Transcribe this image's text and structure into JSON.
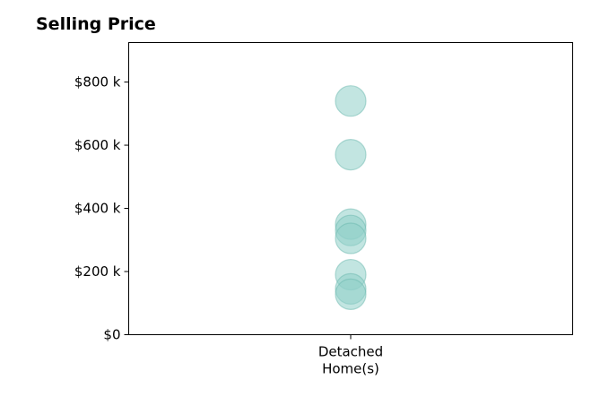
{
  "chart_data": {
    "type": "scatter",
    "title": "Selling Price",
    "xlabel": "",
    "ylabel": "",
    "categories": [
      "Detached Home(s)"
    ],
    "category_lines": [
      [
        "Detached",
        "Home(s)"
      ]
    ],
    "ylim": [
      0,
      925
    ],
    "y_ticks": [
      0,
      200,
      400,
      600,
      800
    ],
    "y_tick_labels": [
      "$0",
      "$200 k",
      "$400 k",
      "$600 k",
      "$800 k"
    ],
    "grid": false,
    "legend": "none",
    "series": [
      {
        "category": "Detached Home(s)",
        "values": [
          740,
          570,
          350,
          330,
          305,
          190,
          145,
          128
        ]
      }
    ],
    "colors": {
      "marker_fill": "#8fd0c8",
      "marker_stroke": "#6ab8ae",
      "axis": "#000000"
    }
  }
}
